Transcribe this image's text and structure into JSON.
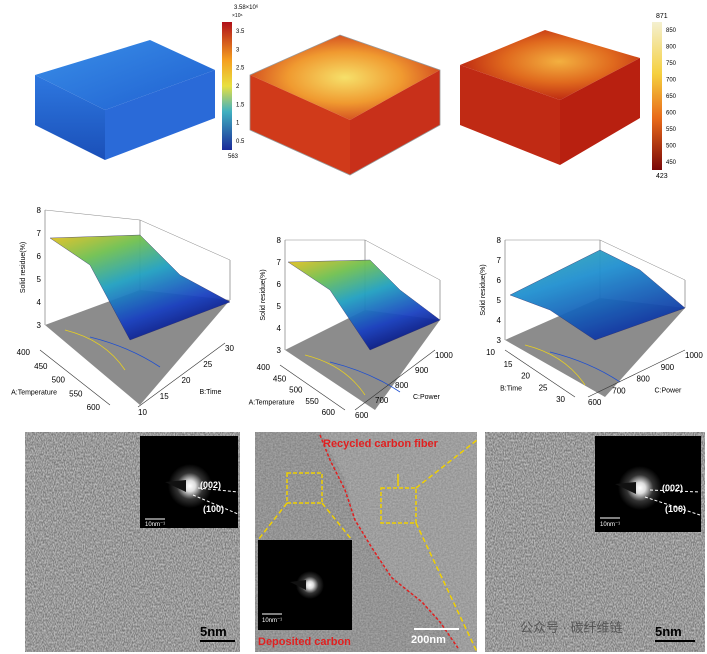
{
  "top_row": {
    "colorbar_left": {
      "max_label": "3.58×10⁶",
      "unit": "×10⁶",
      "ticks": [
        3.5,
        3,
        2.5,
        2,
        1.5,
        1,
        0.5
      ],
      "min_label": "563"
    },
    "colorbar_right": {
      "max_label": "871",
      "ticks": [
        850,
        800,
        750,
        700,
        650,
        600,
        550,
        500,
        450
      ],
      "min_label": "423"
    }
  },
  "surface_plots": [
    {
      "z_label": "Solid residue(%)",
      "z_ticks": [
        3,
        4,
        5,
        6,
        7,
        8
      ],
      "left_label": "A:Temperature",
      "left_ticks": [
        400,
        450,
        500,
        550,
        600
      ],
      "right_label": "B:Time",
      "right_ticks": [
        10,
        15,
        20,
        25,
        30
      ]
    },
    {
      "z_label": "Solid residue(%)",
      "z_ticks": [
        3,
        4,
        5,
        6,
        7,
        8
      ],
      "left_label": "A:Temperature",
      "left_ticks": [
        400,
        450,
        500,
        550,
        600
      ],
      "right_label": "C:Power",
      "right_ticks": [
        600,
        700,
        800,
        900,
        1000
      ]
    },
    {
      "z_label": "Solid residue(%)",
      "z_ticks": [
        3,
        4,
        5,
        6,
        7,
        8
      ],
      "left_label": "B:Time",
      "left_ticks": [
        10,
        15,
        20,
        25,
        30
      ],
      "right_label": "C:Power",
      "right_ticks": [
        600,
        700,
        800,
        900,
        1000
      ]
    }
  ],
  "tem_panels": {
    "left": {
      "peak_1": "(002)",
      "peak_2": "(100)",
      "inset_scale": "10nm⁻¹",
      "scale": "5nm"
    },
    "middle": {
      "top_label": "Recycled carbon fiber",
      "bottom_label": "Deposited carbon",
      "inset_scale": "10nm⁻¹",
      "scale": "200nm"
    },
    "right": {
      "peak_1": "(002)",
      "peak_2": "(100)",
      "inset_scale": "10nm⁻¹",
      "scale": "5nm"
    },
    "watermark": "公众号 · 碳纤维链"
  }
}
